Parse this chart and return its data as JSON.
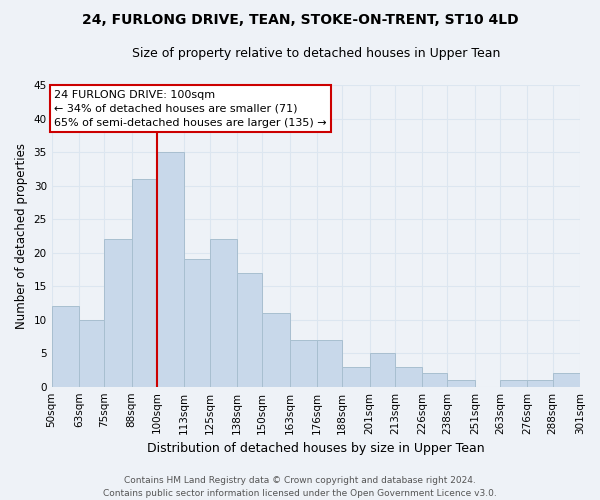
{
  "title": "24, FURLONG DRIVE, TEAN, STOKE-ON-TRENT, ST10 4LD",
  "subtitle": "Size of property relative to detached houses in Upper Tean",
  "xlabel": "Distribution of detached houses by size in Upper Tean",
  "ylabel": "Number of detached properties",
  "bar_color": "#c8d8ea",
  "bar_edge_color": "#a8bfd0",
  "vline_x": 100,
  "vline_color": "#cc0000",
  "annotation_line1": "24 FURLONG DRIVE: 100sqm",
  "annotation_line2": "← 34% of detached houses are smaller (71)",
  "annotation_line3": "65% of semi-detached houses are larger (135) →",
  "annotation_box_facecolor": "white",
  "annotation_box_edgecolor": "#cc0000",
  "bin_edges": [
    50,
    63,
    75,
    88,
    100,
    113,
    125,
    138,
    150,
    163,
    176,
    188,
    201,
    213,
    226,
    238,
    251,
    263,
    276,
    288,
    301
  ],
  "counts": [
    12,
    10,
    22,
    31,
    35,
    19,
    22,
    17,
    11,
    7,
    7,
    3,
    5,
    3,
    2,
    1,
    0,
    1,
    1,
    2
  ],
  "ylim": [
    0,
    45
  ],
  "yticks": [
    0,
    5,
    10,
    15,
    20,
    25,
    30,
    35,
    40,
    45
  ],
  "footer_line1": "Contains HM Land Registry data © Crown copyright and database right 2024.",
  "footer_line2": "Contains public sector information licensed under the Open Government Licence v3.0.",
  "grid_color": "#dce6f0",
  "background_color": "#eef2f7",
  "title_fontsize": 10,
  "subtitle_fontsize": 9,
  "ylabel_fontsize": 8.5,
  "xlabel_fontsize": 9,
  "tick_fontsize": 7.5,
  "annotation_fontsize": 8,
  "footer_fontsize": 6.5
}
